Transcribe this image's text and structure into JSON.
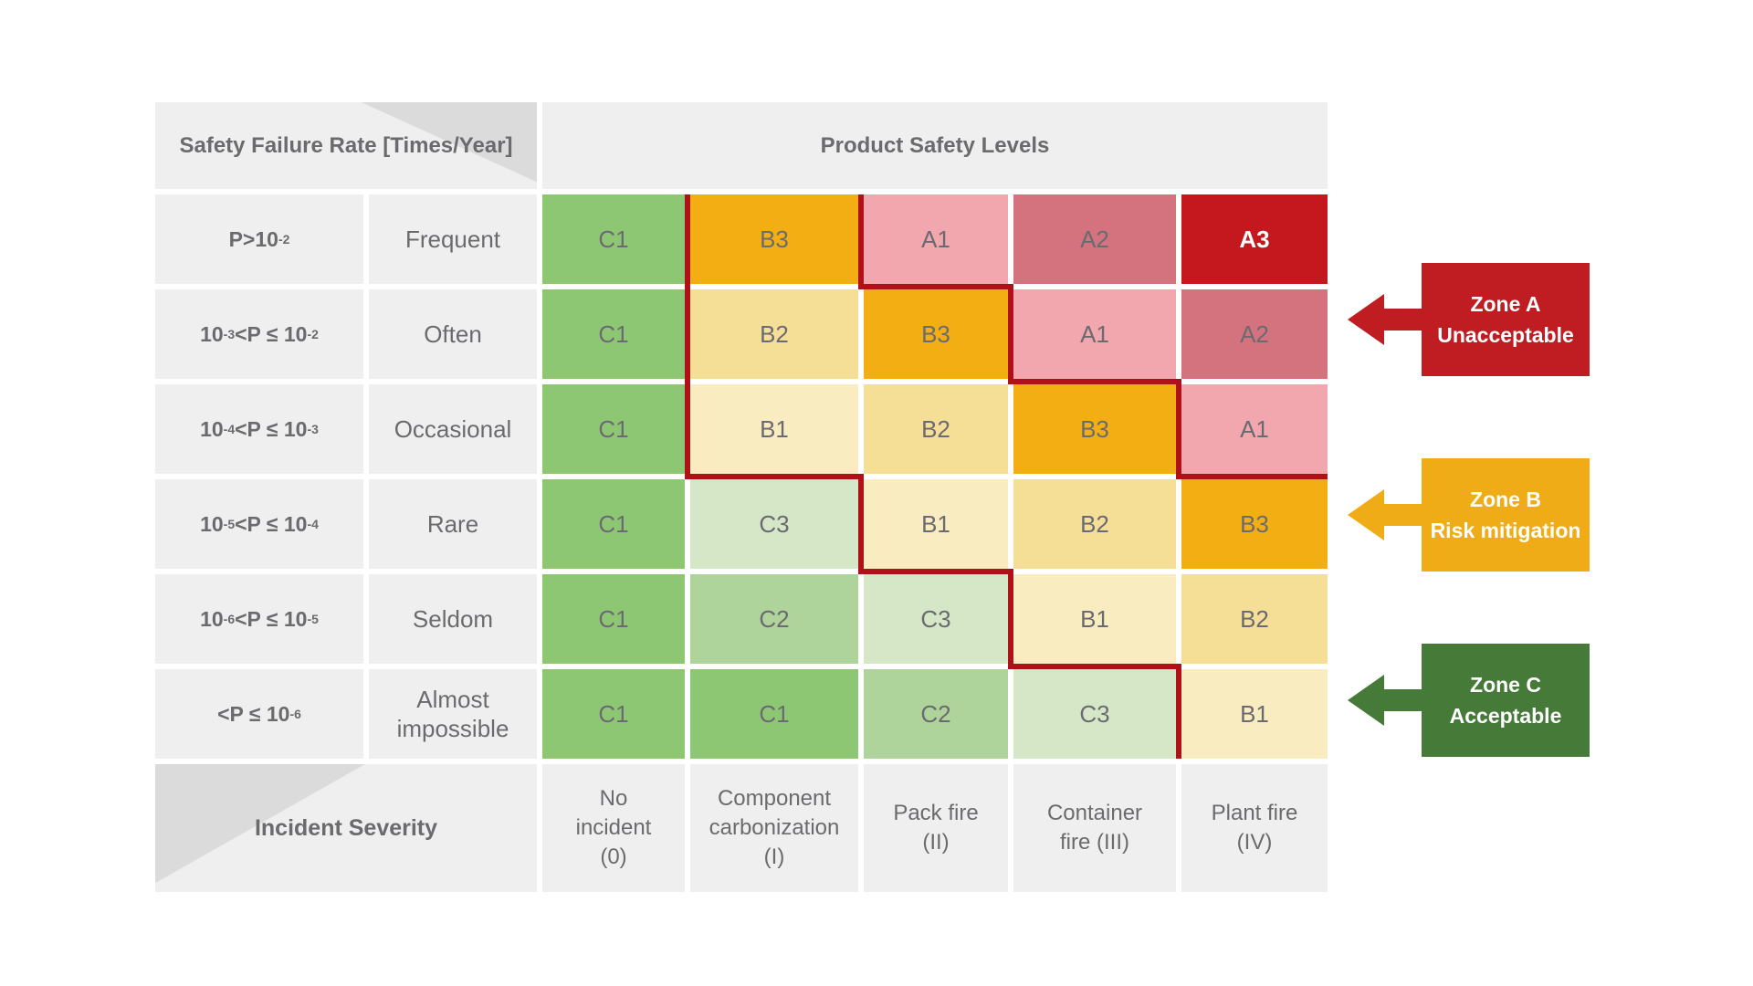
{
  "title_block": {
    "corner_header": "Safety Failure Rate [Times/Year]",
    "levels_header": "Product Safety Levels",
    "severity_header": "Incident Severity"
  },
  "matrix": {
    "rows": [
      {
        "probability": [
          {
            "t": "P>10"
          },
          {
            "s": "-2"
          }
        ],
        "frequency": "Frequent",
        "cells": [
          "C1",
          "B3",
          "A1",
          "A2",
          "A3"
        ]
      },
      {
        "probability": [
          {
            "t": "10"
          },
          {
            "s": "-3"
          },
          {
            "t": "<P ≤ 10"
          },
          {
            "s": "-2"
          }
        ],
        "frequency": "Often",
        "cells": [
          "C1",
          "B2",
          "B3",
          "A1",
          "A2"
        ]
      },
      {
        "probability": [
          {
            "t": "10"
          },
          {
            "s": "-4"
          },
          {
            "t": "<P ≤ 10"
          },
          {
            "s": "-3"
          }
        ],
        "frequency": "Occasional",
        "cells": [
          "C1",
          "B1",
          "B2",
          "B3",
          "A1"
        ]
      },
      {
        "probability": [
          {
            "t": "10"
          },
          {
            "s": "-5"
          },
          {
            "t": "<P ≤ 10"
          },
          {
            "s": "-4"
          }
        ],
        "frequency": "Rare",
        "cells": [
          "C1",
          "C3",
          "B1",
          "B2",
          "B3"
        ]
      },
      {
        "probability": [
          {
            "t": "10"
          },
          {
            "s": "-6"
          },
          {
            "t": "<P ≤ 10"
          },
          {
            "s": "-5"
          }
        ],
        "frequency": "Seldom",
        "cells": [
          "C1",
          "C2",
          "C3",
          "B1",
          "B2"
        ]
      },
      {
        "probability": [
          {
            "t": "<P ≤ 10"
          },
          {
            "s": "-6"
          }
        ],
        "frequency": "Almost impossible",
        "cells": [
          "C1",
          "C1",
          "C2",
          "C3",
          "B1"
        ]
      }
    ],
    "severity_columns": [
      {
        "lines": [
          "No",
          "incident",
          "(0)"
        ]
      },
      {
        "lines": [
          "Component",
          "carbonization",
          "(I)"
        ]
      },
      {
        "lines": [
          "Pack fire",
          "(II)"
        ]
      },
      {
        "lines": [
          "Container",
          "fire (III)"
        ]
      },
      {
        "lines": [
          "Plant fire",
          "(IV)"
        ]
      }
    ],
    "level_colors": {
      "C1": "#8ec773",
      "C2": "#aed49b",
      "C3": "#d5e7c7",
      "B1": "#f8ecc0",
      "B2": "#f5df96",
      "B3": "#f2ae13",
      "A1": "#f2a6ad",
      "A2": "#d4737e",
      "A3": "#c5171e"
    },
    "level_text_colors": {
      "default": "#6a6a70",
      "A3": "#ffffff"
    },
    "zone_line_color": "#b01017"
  },
  "legend": {
    "zones": [
      {
        "id": "A",
        "title": "Zone A",
        "subtitle": "Unacceptable",
        "color": "#c01d22"
      },
      {
        "id": "B",
        "title": "Zone B",
        "subtitle": "Risk mitigation",
        "color": "#f0ac16"
      },
      {
        "id": "C",
        "title": "Zone C",
        "subtitle": "Acceptable",
        "color": "#457a38"
      }
    ]
  }
}
